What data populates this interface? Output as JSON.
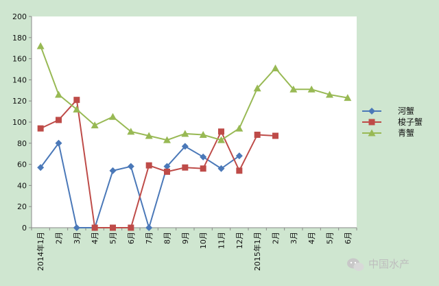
{
  "chart_data": {
    "type": "line",
    "x": [
      "2014年1月",
      "2月",
      "3月",
      "4月",
      "5月",
      "6月",
      "7月",
      "8月",
      "9月",
      "10月",
      "11月",
      "12月",
      "2015年1月",
      "2月",
      "3月",
      "4月",
      "5月",
      "6月"
    ],
    "series": [
      {
        "name": "河蟹",
        "color": "#4a78b8",
        "marker": "diamond",
        "values": [
          57,
          80,
          0,
          0,
          54,
          58,
          0,
          58,
          77,
          67,
          56,
          68,
          null,
          null,
          null,
          null,
          null,
          null
        ]
      },
      {
        "name": "梭子蟹",
        "color": "#be4b48",
        "marker": "square",
        "values": [
          94,
          102,
          121,
          0,
          0,
          0,
          59,
          53,
          57,
          56,
          91,
          54,
          88,
          87,
          null,
          null,
          null,
          null
        ]
      },
      {
        "name": "青蟹",
        "color": "#98b954",
        "marker": "triangle",
        "values": [
          172,
          126,
          112,
          97,
          105,
          91,
          87,
          83,
          89,
          88,
          83,
          94,
          132,
          151,
          131,
          131,
          126,
          123
        ]
      }
    ],
    "yticks": [
      0,
      20,
      40,
      60,
      80,
      100,
      120,
      140,
      160,
      180,
      200
    ],
    "ylim": [
      0,
      200
    ],
    "grid": false,
    "legend_position": "right"
  },
  "watermark": {
    "text": "中国水产",
    "icon": "wechat-icon"
  }
}
